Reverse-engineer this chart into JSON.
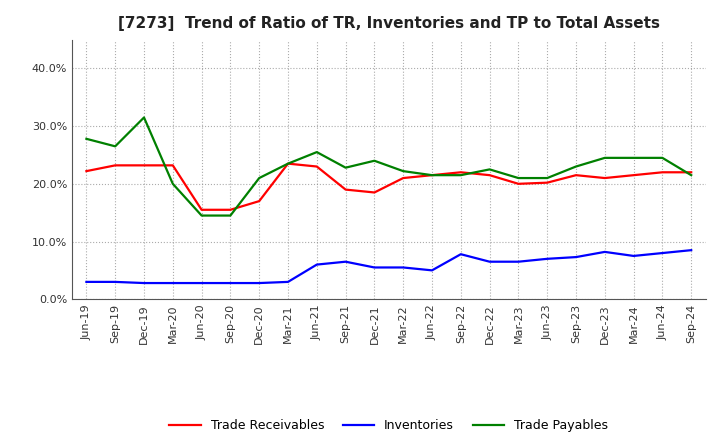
{
  "title": "[7273]  Trend of Ratio of TR, Inventories and TP to Total Assets",
  "x_labels": [
    "Jun-19",
    "Sep-19",
    "Dec-19",
    "Mar-20",
    "Jun-20",
    "Sep-20",
    "Dec-20",
    "Mar-21",
    "Jun-21",
    "Sep-21",
    "Dec-21",
    "Mar-22",
    "Jun-22",
    "Sep-22",
    "Dec-22",
    "Mar-23",
    "Jun-23",
    "Sep-23",
    "Dec-23",
    "Mar-24",
    "Jun-24",
    "Sep-24"
  ],
  "trade_receivables": [
    0.222,
    0.232,
    0.232,
    0.232,
    0.155,
    0.155,
    0.17,
    0.235,
    0.23,
    0.19,
    0.185,
    0.21,
    0.215,
    0.22,
    0.215,
    0.2,
    0.202,
    0.215,
    0.21,
    0.215,
    0.22,
    0.22
  ],
  "inventories": [
    0.03,
    0.03,
    0.028,
    0.028,
    0.028,
    0.028,
    0.028,
    0.03,
    0.06,
    0.065,
    0.055,
    0.055,
    0.05,
    0.078,
    0.065,
    0.065,
    0.07,
    0.073,
    0.082,
    0.075,
    0.08,
    0.085
  ],
  "trade_payables": [
    0.278,
    0.265,
    0.315,
    0.2,
    0.145,
    0.145,
    0.21,
    0.235,
    0.255,
    0.228,
    0.24,
    0.222,
    0.215,
    0.215,
    0.225,
    0.21,
    0.21,
    0.23,
    0.245,
    0.245,
    0.245,
    0.215
  ],
  "color_tr": "#ff0000",
  "color_inv": "#0000ff",
  "color_tp": "#008000",
  "ylim": [
    0.0,
    0.45
  ],
  "yticks": [
    0.0,
    0.1,
    0.2,
    0.3,
    0.4
  ],
  "plot_bg_color": "#ffffff",
  "fig_bg_color": "#ffffff",
  "grid_color": "#888888",
  "spine_color": "#555555",
  "title_fontsize": 11,
  "tick_fontsize": 8,
  "legend_fontsize": 9,
  "linewidth": 1.6
}
